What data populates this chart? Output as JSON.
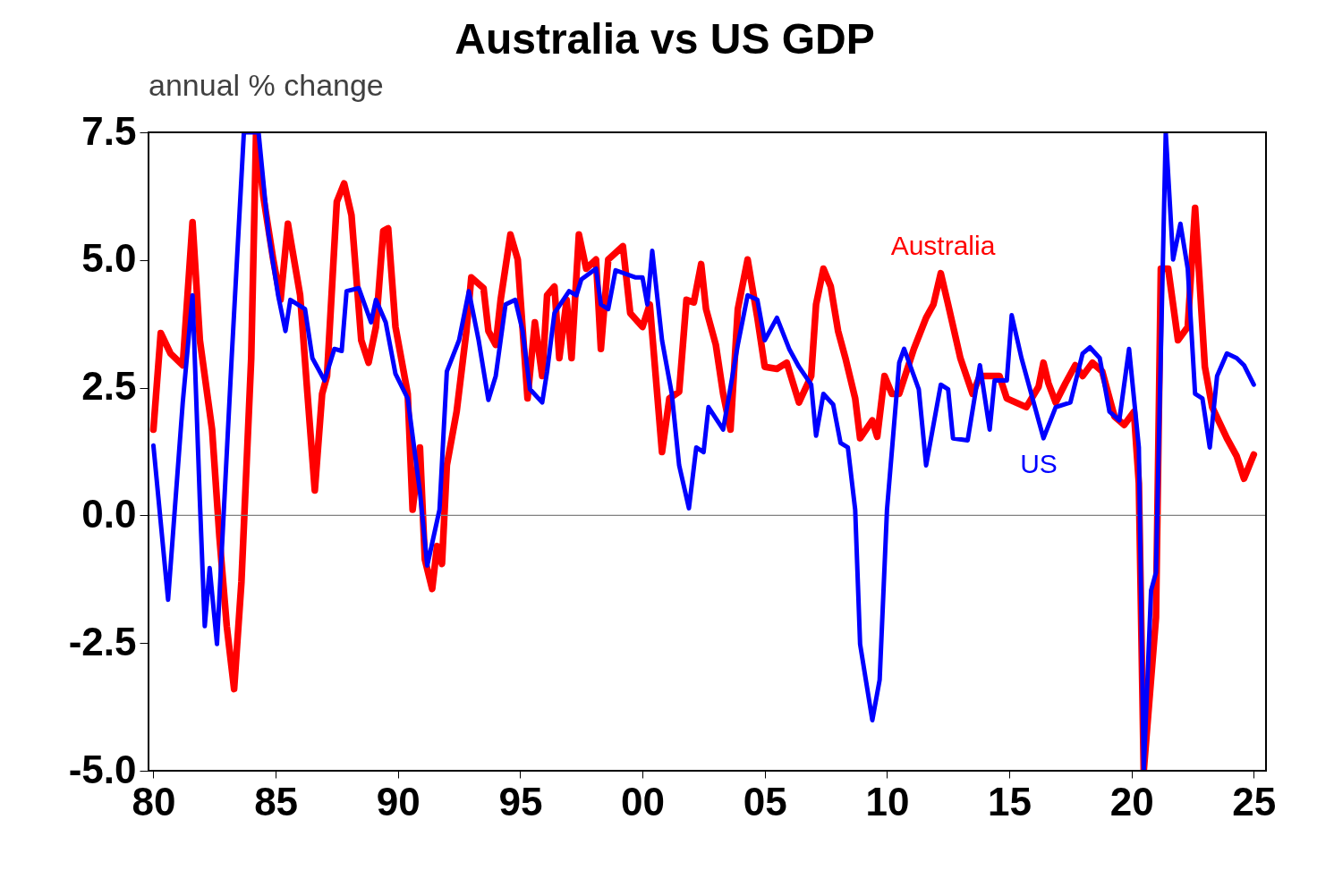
{
  "chart_data": {
    "type": "line",
    "title": "Australia vs US GDP",
    "subtitle": "annual % change",
    "xlim": [
      1979.8,
      2025.5
    ],
    "xticks": [
      {
        "value": 1980,
        "label": "80"
      },
      {
        "value": 1985,
        "label": "85"
      },
      {
        "value": 1990,
        "label": "90"
      },
      {
        "value": 1995,
        "label": "95"
      },
      {
        "value": 2000,
        "label": "00"
      },
      {
        "value": 2005,
        "label": "05"
      },
      {
        "value": 2010,
        "label": "10"
      },
      {
        "value": 2015,
        "label": "15"
      },
      {
        "value": 2020,
        "label": "20"
      },
      {
        "value": 2025,
        "label": "25"
      }
    ],
    "ylim": [
      -5.0,
      7.5
    ],
    "yticks": [
      {
        "value": -5,
        "label": "-5.0"
      },
      -2.5,
      {
        "value": 0,
        "label": "0.0"
      },
      2.5,
      {
        "value": 5,
        "label": "5.0"
      },
      7.5
    ],
    "grid": false,
    "marker": "none",
    "line_style": "solid",
    "ref_lines": [
      {
        "axis": "y",
        "value": 0,
        "color": "#808080"
      }
    ],
    "series": [
      {
        "name": "Australia",
        "color": "#ff0000",
        "x": [
          1980.0,
          1980.3,
          1980.7,
          1981.2,
          1981.6,
          1981.9,
          1982.4,
          1982.7,
          1983.0,
          1983.3,
          1983.6,
          1984.0,
          1984.2,
          1984.5,
          1984.9,
          1985.2,
          1985.5,
          1986.0,
          1986.3,
          1986.6,
          1986.9,
          1987.1,
          1987.5,
          1987.8,
          1988.1,
          1988.5,
          1988.8,
          1989.1,
          1989.4,
          1989.6,
          1989.9,
          1990.4,
          1990.6,
          1990.9,
          1991.1,
          1991.4,
          1991.6,
          1991.8,
          1992.0,
          1992.4,
          1992.8,
          1993.0,
          1993.5,
          1993.7,
          1994.0,
          1994.2,
          1994.6,
          1994.9,
          1995.3,
          1995.6,
          1995.9,
          1996.1,
          1996.4,
          1996.6,
          1996.9,
          1997.1,
          1997.4,
          1997.7,
          1998.1,
          1998.3,
          1998.6,
          1999.2,
          1999.5,
          2000.0,
          2000.3,
          2000.8,
          2001.1,
          2001.5,
          2001.8,
          2002.1,
          2002.4,
          2002.6,
          2003.0,
          2003.3,
          2003.6,
          2003.9,
          2004.3,
          2004.7,
          2005.0,
          2005.5,
          2005.9,
          2006.4,
          2006.9,
          2007.1,
          2007.4,
          2007.7,
          2008.0,
          2008.3,
          2008.7,
          2008.9,
          2009.4,
          2009.6,
          2009.9,
          2010.2,
          2010.5,
          2011.1,
          2011.6,
          2011.9,
          2012.2,
          2012.5,
          2013.0,
          2013.5,
          2013.8,
          2014.6,
          2014.9,
          2015.7,
          2016.2,
          2016.4,
          2016.6,
          2016.9,
          2017.3,
          2017.7,
          2018.0,
          2018.4,
          2018.8,
          2019.3,
          2019.7,
          2020.1,
          2020.3,
          2020.5,
          2021.0,
          2021.2,
          2021.5,
          2021.9,
          2022.3,
          2022.6,
          2023.0,
          2023.3,
          2023.9,
          2024.3,
          2024.6,
          2025.0
        ],
        "values": [
          1.68,
          3.57,
          3.17,
          2.94,
          5.74,
          3.43,
          1.68,
          -0.42,
          -2.17,
          -3.4,
          -1.3,
          3.08,
          7.5,
          6.23,
          5.01,
          4.22,
          5.71,
          4.31,
          2.38,
          0.49,
          2.38,
          2.73,
          6.14,
          6.5,
          5.88,
          3.43,
          2.99,
          3.69,
          5.57,
          5.62,
          3.69,
          2.38,
          0.11,
          1.33,
          -0.86,
          -1.44,
          -0.6,
          -0.95,
          0.98,
          2.03,
          3.61,
          4.66,
          4.45,
          3.61,
          3.34,
          4.22,
          5.5,
          5.01,
          2.29,
          3.78,
          2.73,
          4.31,
          4.48,
          3.08,
          4.22,
          3.08,
          5.5,
          4.83,
          5.01,
          3.26,
          5.01,
          5.27,
          3.96,
          3.69,
          4.13,
          1.24,
          2.29,
          2.42,
          4.22,
          4.17,
          4.92,
          4.04,
          3.34,
          2.38,
          1.68,
          4.04,
          5.01,
          3.87,
          2.91,
          2.87,
          2.99,
          2.21,
          2.73,
          4.13,
          4.83,
          4.48,
          3.61,
          3.08,
          2.29,
          1.51,
          1.86,
          1.54,
          2.73,
          2.38,
          2.38,
          3.26,
          3.87,
          4.13,
          4.74,
          4.13,
          3.08,
          2.38,
          2.73,
          2.73,
          2.29,
          2.12,
          2.52,
          2.99,
          2.59,
          2.21,
          2.59,
          2.94,
          2.73,
          2.99,
          2.82,
          1.94,
          1.77,
          2.03,
          0.63,
          -5.0,
          -2.0,
          4.83,
          4.83,
          3.43,
          3.69,
          6.02,
          2.91,
          2.12,
          1.51,
          1.16,
          0.72,
          1.19
        ]
      },
      {
        "name": "US",
        "color": "#0000ff",
        "x": [
          1980.0,
          1980.6,
          1981.2,
          1981.6,
          1981.9,
          1982.1,
          1982.3,
          1982.6,
          1983.2,
          1983.7,
          1984.3,
          1984.7,
          1985.1,
          1985.4,
          1985.6,
          1986.2,
          1986.5,
          1987.0,
          1987.4,
          1987.7,
          1987.9,
          1988.4,
          1988.9,
          1989.1,
          1989.5,
          1989.9,
          1990.4,
          1990.9,
          1991.2,
          1991.7,
          1992.0,
          1992.5,
          1992.9,
          1993.3,
          1993.7,
          1994.0,
          1994.4,
          1994.8,
          1995.1,
          1995.4,
          1995.9,
          1996.1,
          1996.4,
          1997.0,
          1997.3,
          1997.5,
          1998.1,
          1998.3,
          1998.6,
          1998.9,
          1999.7,
          2000.0,
          2000.2,
          2000.4,
          2000.8,
          2001.2,
          2001.5,
          2001.9,
          2002.2,
          2002.5,
          2002.7,
          2003.3,
          2003.9,
          2004.3,
          2004.7,
          2005.0,
          2005.5,
          2006.0,
          2006.4,
          2006.9,
          2007.1,
          2007.4,
          2007.8,
          2008.1,
          2008.4,
          2008.7,
          2008.9,
          2009.4,
          2009.7,
          2010.0,
          2010.5,
          2010.7,
          2011.3,
          2011.6,
          2012.2,
          2012.5,
          2012.7,
          2013.3,
          2013.8,
          2014.2,
          2014.4,
          2014.9,
          2015.1,
          2015.5,
          2016.4,
          2016.9,
          2017.5,
          2018.0,
          2018.3,
          2018.7,
          2019.1,
          2019.5,
          2019.9,
          2020.3,
          2020.5,
          2020.8,
          2021.0,
          2021.4,
          2021.7,
          2022.0,
          2022.3,
          2022.6,
          2022.9,
          2023.2,
          2023.5,
          2023.9,
          2024.3,
          2024.6,
          2025.0
        ],
        "values": [
          1.37,
          -1.65,
          2.21,
          4.31,
          0.28,
          -2.17,
          -1.03,
          -2.52,
          3.08,
          7.5,
          7.5,
          5.53,
          4.31,
          3.61,
          4.22,
          4.04,
          3.08,
          2.64,
          3.26,
          3.22,
          4.39,
          4.45,
          3.78,
          4.22,
          3.78,
          2.77,
          2.29,
          0.46,
          -0.98,
          0.11,
          2.82,
          3.43,
          4.39,
          3.43,
          2.26,
          2.73,
          4.13,
          4.22,
          3.61,
          2.47,
          2.21,
          2.82,
          3.96,
          4.39,
          4.31,
          4.62,
          4.83,
          4.13,
          4.04,
          4.8,
          4.66,
          4.66,
          4.13,
          5.18,
          3.43,
          2.38,
          0.98,
          0.14,
          1.33,
          1.24,
          2.12,
          1.68,
          3.34,
          4.31,
          4.22,
          3.43,
          3.87,
          3.26,
          2.91,
          2.56,
          1.56,
          2.38,
          2.17,
          1.42,
          1.33,
          0.11,
          -2.52,
          -4.01,
          -3.22,
          0.11,
          2.99,
          3.26,
          2.47,
          0.98,
          2.56,
          2.47,
          1.51,
          1.47,
          2.94,
          1.68,
          2.64,
          2.64,
          3.92,
          3.08,
          1.51,
          2.12,
          2.21,
          3.17,
          3.29,
          3.08,
          2.03,
          1.86,
          3.26,
          1.33,
          -5.0,
          -1.47,
          -1.12,
          7.5,
          5.01,
          5.71,
          4.83,
          2.38,
          2.29,
          1.33,
          2.73,
          3.17,
          3.08,
          2.94,
          2.56
        ]
      }
    ]
  }
}
